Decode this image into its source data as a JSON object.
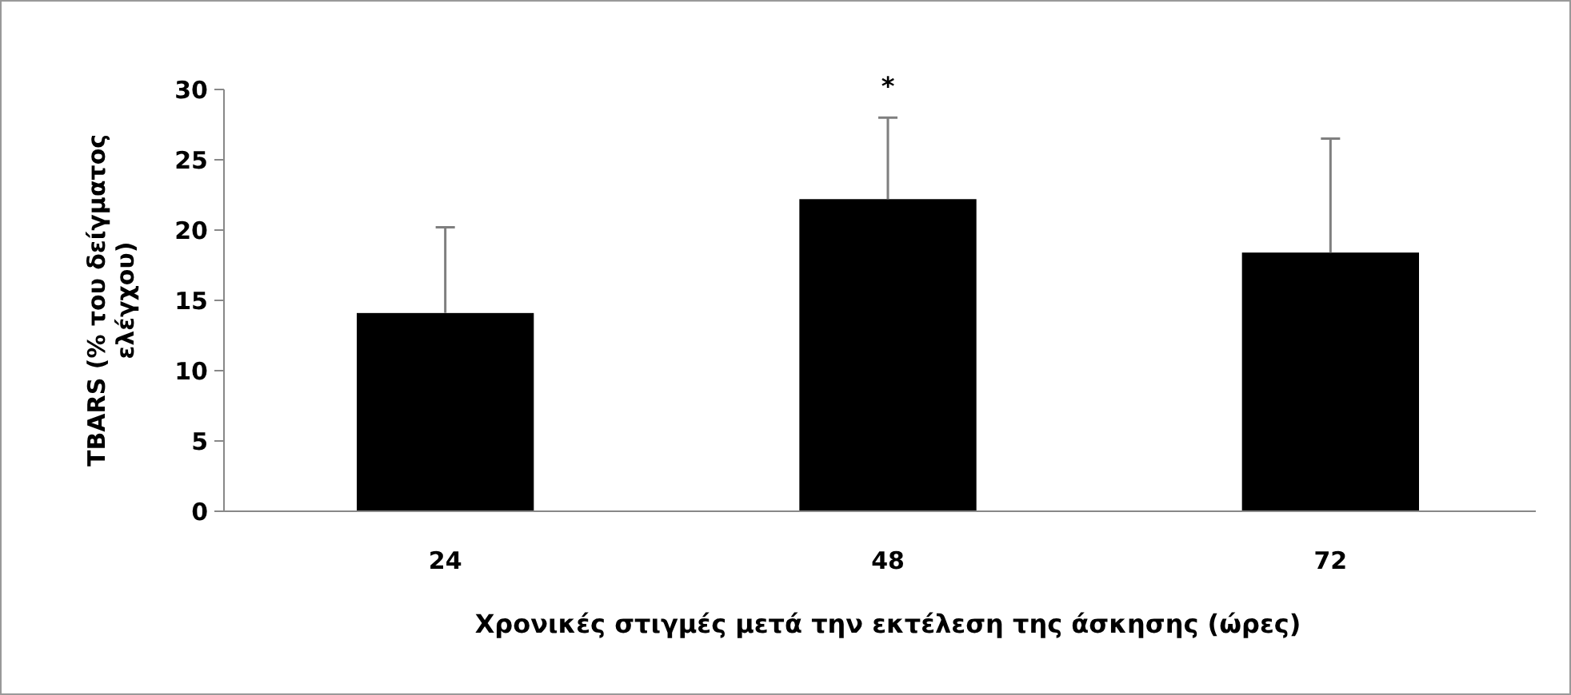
{
  "chart_data": {
    "type": "bar",
    "ylabel": "TBARS (% του δείγματος ελέγχου)",
    "xlabel": "Χρονικές στιγμές μετά την εκτέλεση της άσκησης (ώρες)",
    "categories": [
      "24",
      "48",
      "72"
    ],
    "values": [
      14.1,
      22.2,
      18.4
    ],
    "errors": [
      [
        14.1,
        20.2
      ],
      [
        22.2,
        28.0
      ],
      [
        18.4,
        26.5
      ]
    ],
    "color": "#000000",
    "ylim": [
      0,
      30
    ],
    "yticks": [
      0,
      5,
      10,
      15,
      20,
      25,
      30
    ],
    "grid": false,
    "annotations": [
      {
        "text": "*",
        "x": "48",
        "y": 28.0
      }
    ]
  }
}
